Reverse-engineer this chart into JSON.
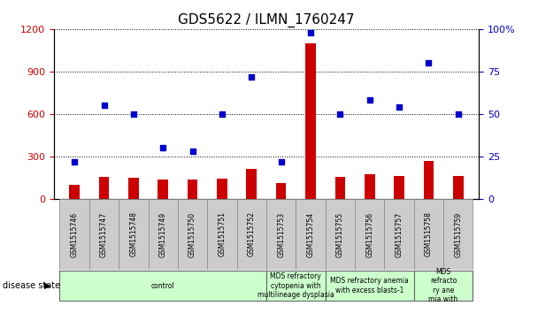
{
  "title": "GDS5622 / ILMN_1760247",
  "samples": [
    "GSM1515746",
    "GSM1515747",
    "GSM1515748",
    "GSM1515749",
    "GSM1515750",
    "GSM1515751",
    "GSM1515752",
    "GSM1515753",
    "GSM1515754",
    "GSM1515755",
    "GSM1515756",
    "GSM1515757",
    "GSM1515758",
    "GSM1515759"
  ],
  "counts": [
    100,
    155,
    150,
    140,
    135,
    145,
    215,
    115,
    1100,
    155,
    175,
    165,
    270,
    160
  ],
  "percentile_ranks": [
    22,
    55,
    50,
    30,
    28,
    50,
    72,
    22,
    98,
    50,
    58,
    54,
    80,
    50
  ],
  "group_configs": [
    {
      "start": 0,
      "end": 7,
      "label": "control"
    },
    {
      "start": 7,
      "end": 9,
      "label": "MDS refractory\ncytopenia with\nmultilineage dysplasia"
    },
    {
      "start": 9,
      "end": 12,
      "label": "MDS refractory anemia\nwith excess blasts-1"
    },
    {
      "start": 12,
      "end": 14,
      "label": "MDS\nrefracto\nry ane\nmia with"
    }
  ],
  "bar_color": "#cc0000",
  "dot_color": "#0000cc",
  "left_ylim": [
    0,
    1200
  ],
  "right_ylim": [
    0,
    100
  ],
  "left_yticks": [
    0,
    300,
    600,
    900,
    1200
  ],
  "right_yticks": [
    0,
    25,
    50,
    75,
    100
  ],
  "left_tick_color": "#cc0000",
  "right_tick_color": "#0000cc",
  "grid_color": "#000000",
  "background_color": "#ffffff",
  "sample_box_color": "#cccccc",
  "group_color": "#ccffcc",
  "title_fontsize": 11,
  "bar_width": 0.35,
  "dot_size": 25
}
